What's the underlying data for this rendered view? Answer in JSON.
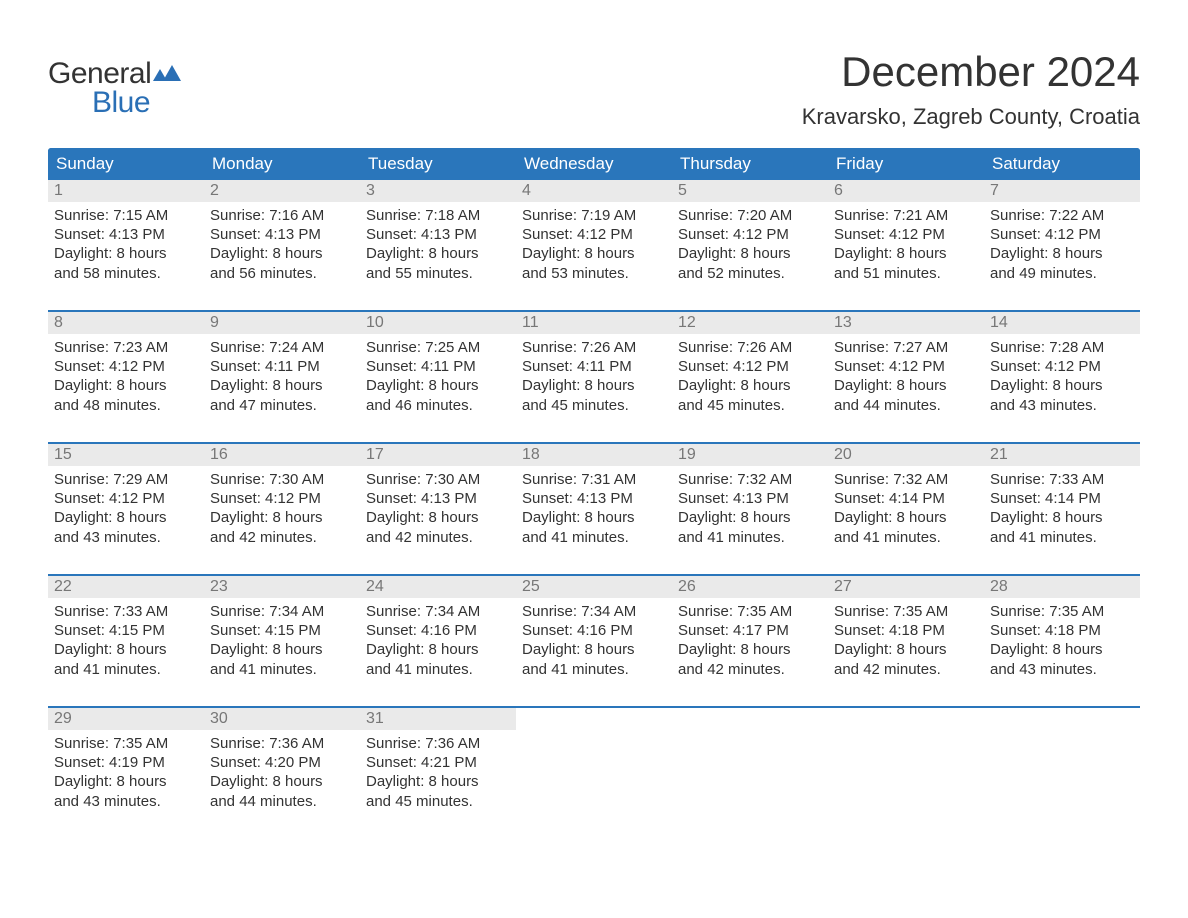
{
  "brand": {
    "word1": "General",
    "word2": "Blue",
    "word1_color": "#333333",
    "word2_color": "#2a6fb5",
    "flag_color": "#2a6fb5"
  },
  "title": "December 2024",
  "location": "Kravarsko, Zagreb County, Croatia",
  "colors": {
    "header_bg": "#2a76bb",
    "header_text": "#ffffff",
    "week_border": "#2a76bb",
    "daynum_bg": "#eaeaea",
    "daynum_text": "#777777",
    "body_text": "#333333",
    "page_bg": "#ffffff"
  },
  "typography": {
    "title_fontsize": 42,
    "location_fontsize": 22,
    "dow_fontsize": 17,
    "daynum_fontsize": 16,
    "body_fontsize": 15
  },
  "day_labels": [
    "Sunday",
    "Monday",
    "Tuesday",
    "Wednesday",
    "Thursday",
    "Friday",
    "Saturday"
  ],
  "weeks": [
    [
      {
        "n": "1",
        "sunrise": "Sunrise: 7:15 AM",
        "sunset": "Sunset: 4:13 PM",
        "d1": "Daylight: 8 hours",
        "d2": "and 58 minutes."
      },
      {
        "n": "2",
        "sunrise": "Sunrise: 7:16 AM",
        "sunset": "Sunset: 4:13 PM",
        "d1": "Daylight: 8 hours",
        "d2": "and 56 minutes."
      },
      {
        "n": "3",
        "sunrise": "Sunrise: 7:18 AM",
        "sunset": "Sunset: 4:13 PM",
        "d1": "Daylight: 8 hours",
        "d2": "and 55 minutes."
      },
      {
        "n": "4",
        "sunrise": "Sunrise: 7:19 AM",
        "sunset": "Sunset: 4:12 PM",
        "d1": "Daylight: 8 hours",
        "d2": "and 53 minutes."
      },
      {
        "n": "5",
        "sunrise": "Sunrise: 7:20 AM",
        "sunset": "Sunset: 4:12 PM",
        "d1": "Daylight: 8 hours",
        "d2": "and 52 minutes."
      },
      {
        "n": "6",
        "sunrise": "Sunrise: 7:21 AM",
        "sunset": "Sunset: 4:12 PM",
        "d1": "Daylight: 8 hours",
        "d2": "and 51 minutes."
      },
      {
        "n": "7",
        "sunrise": "Sunrise: 7:22 AM",
        "sunset": "Sunset: 4:12 PM",
        "d1": "Daylight: 8 hours",
        "d2": "and 49 minutes."
      }
    ],
    [
      {
        "n": "8",
        "sunrise": "Sunrise: 7:23 AM",
        "sunset": "Sunset: 4:12 PM",
        "d1": "Daylight: 8 hours",
        "d2": "and 48 minutes."
      },
      {
        "n": "9",
        "sunrise": "Sunrise: 7:24 AM",
        "sunset": "Sunset: 4:11 PM",
        "d1": "Daylight: 8 hours",
        "d2": "and 47 minutes."
      },
      {
        "n": "10",
        "sunrise": "Sunrise: 7:25 AM",
        "sunset": "Sunset: 4:11 PM",
        "d1": "Daylight: 8 hours",
        "d2": "and 46 minutes."
      },
      {
        "n": "11",
        "sunrise": "Sunrise: 7:26 AM",
        "sunset": "Sunset: 4:11 PM",
        "d1": "Daylight: 8 hours",
        "d2": "and 45 minutes."
      },
      {
        "n": "12",
        "sunrise": "Sunrise: 7:26 AM",
        "sunset": "Sunset: 4:12 PM",
        "d1": "Daylight: 8 hours",
        "d2": "and 45 minutes."
      },
      {
        "n": "13",
        "sunrise": "Sunrise: 7:27 AM",
        "sunset": "Sunset: 4:12 PM",
        "d1": "Daylight: 8 hours",
        "d2": "and 44 minutes."
      },
      {
        "n": "14",
        "sunrise": "Sunrise: 7:28 AM",
        "sunset": "Sunset: 4:12 PM",
        "d1": "Daylight: 8 hours",
        "d2": "and 43 minutes."
      }
    ],
    [
      {
        "n": "15",
        "sunrise": "Sunrise: 7:29 AM",
        "sunset": "Sunset: 4:12 PM",
        "d1": "Daylight: 8 hours",
        "d2": "and 43 minutes."
      },
      {
        "n": "16",
        "sunrise": "Sunrise: 7:30 AM",
        "sunset": "Sunset: 4:12 PM",
        "d1": "Daylight: 8 hours",
        "d2": "and 42 minutes."
      },
      {
        "n": "17",
        "sunrise": "Sunrise: 7:30 AM",
        "sunset": "Sunset: 4:13 PM",
        "d1": "Daylight: 8 hours",
        "d2": "and 42 minutes."
      },
      {
        "n": "18",
        "sunrise": "Sunrise: 7:31 AM",
        "sunset": "Sunset: 4:13 PM",
        "d1": "Daylight: 8 hours",
        "d2": "and 41 minutes."
      },
      {
        "n": "19",
        "sunrise": "Sunrise: 7:32 AM",
        "sunset": "Sunset: 4:13 PM",
        "d1": "Daylight: 8 hours",
        "d2": "and 41 minutes."
      },
      {
        "n": "20",
        "sunrise": "Sunrise: 7:32 AM",
        "sunset": "Sunset: 4:14 PM",
        "d1": "Daylight: 8 hours",
        "d2": "and 41 minutes."
      },
      {
        "n": "21",
        "sunrise": "Sunrise: 7:33 AM",
        "sunset": "Sunset: 4:14 PM",
        "d1": "Daylight: 8 hours",
        "d2": "and 41 minutes."
      }
    ],
    [
      {
        "n": "22",
        "sunrise": "Sunrise: 7:33 AM",
        "sunset": "Sunset: 4:15 PM",
        "d1": "Daylight: 8 hours",
        "d2": "and 41 minutes."
      },
      {
        "n": "23",
        "sunrise": "Sunrise: 7:34 AM",
        "sunset": "Sunset: 4:15 PM",
        "d1": "Daylight: 8 hours",
        "d2": "and 41 minutes."
      },
      {
        "n": "24",
        "sunrise": "Sunrise: 7:34 AM",
        "sunset": "Sunset: 4:16 PM",
        "d1": "Daylight: 8 hours",
        "d2": "and 41 minutes."
      },
      {
        "n": "25",
        "sunrise": "Sunrise: 7:34 AM",
        "sunset": "Sunset: 4:16 PM",
        "d1": "Daylight: 8 hours",
        "d2": "and 41 minutes."
      },
      {
        "n": "26",
        "sunrise": "Sunrise: 7:35 AM",
        "sunset": "Sunset: 4:17 PM",
        "d1": "Daylight: 8 hours",
        "d2": "and 42 minutes."
      },
      {
        "n": "27",
        "sunrise": "Sunrise: 7:35 AM",
        "sunset": "Sunset: 4:18 PM",
        "d1": "Daylight: 8 hours",
        "d2": "and 42 minutes."
      },
      {
        "n": "28",
        "sunrise": "Sunrise: 7:35 AM",
        "sunset": "Sunset: 4:18 PM",
        "d1": "Daylight: 8 hours",
        "d2": "and 43 minutes."
      }
    ],
    [
      {
        "n": "29",
        "sunrise": "Sunrise: 7:35 AM",
        "sunset": "Sunset: 4:19 PM",
        "d1": "Daylight: 8 hours",
        "d2": "and 43 minutes."
      },
      {
        "n": "30",
        "sunrise": "Sunrise: 7:36 AM",
        "sunset": "Sunset: 4:20 PM",
        "d1": "Daylight: 8 hours",
        "d2": "and 44 minutes."
      },
      {
        "n": "31",
        "sunrise": "Sunrise: 7:36 AM",
        "sunset": "Sunset: 4:21 PM",
        "d1": "Daylight: 8 hours",
        "d2": "and 45 minutes."
      },
      {
        "empty": true
      },
      {
        "empty": true
      },
      {
        "empty": true
      },
      {
        "empty": true
      }
    ]
  ]
}
